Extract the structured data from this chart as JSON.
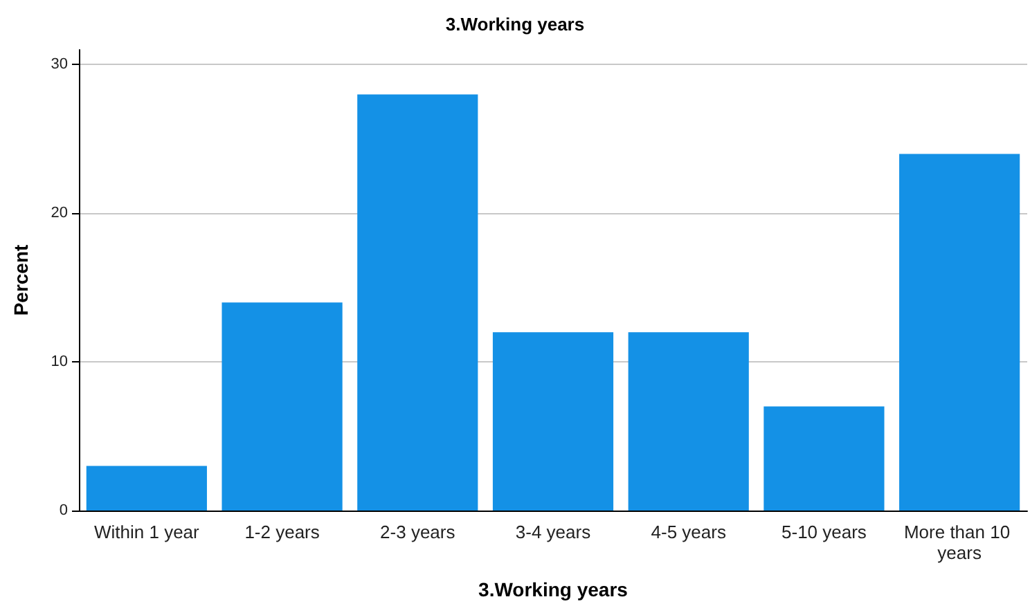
{
  "chart_data": {
    "type": "bar",
    "title": "3.Working years",
    "xlabel": "3.Working years",
    "ylabel": "Percent",
    "categories": [
      "Within 1 year",
      "1-2 years",
      "2-3 years",
      "3-4 years",
      "4-5 years",
      "5-10 years",
      "More than 10 years"
    ],
    "values": [
      3,
      14,
      28,
      12,
      12,
      7,
      24
    ],
    "color": "#1491e6",
    "ylim": [
      0,
      31
    ],
    "yticks": [
      0,
      10,
      20,
      30
    ],
    "grid": "y"
  }
}
